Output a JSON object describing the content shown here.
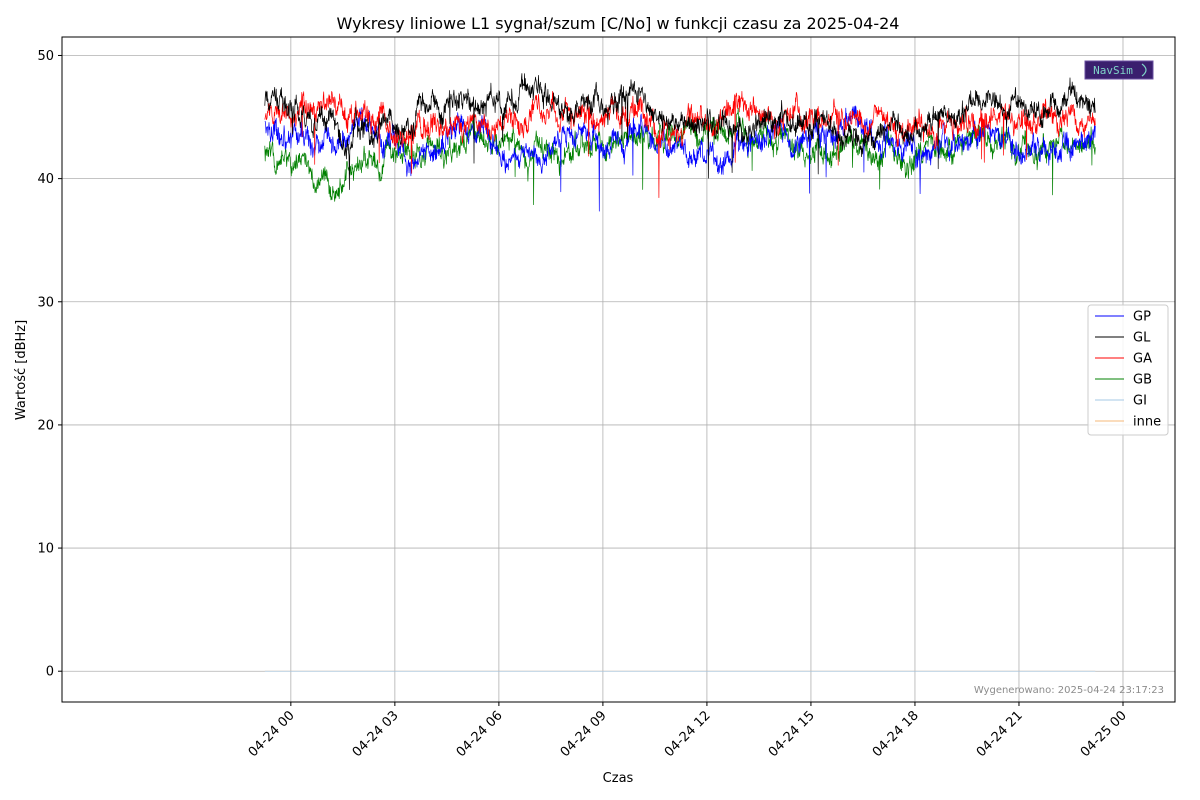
{
  "chart_data": {
    "type": "line",
    "title": "Wykresy liniowe L1 sygnał/szum [C/No] w funkcji czasu za 2025-04-24",
    "xlabel": "Czas",
    "ylabel": "Wartość [dBHz]",
    "ylim": [
      -2.5,
      51.5
    ],
    "yticks": [
      0,
      10,
      20,
      30,
      40,
      50
    ],
    "xlim_hours": [
      -6.6,
      25.5
    ],
    "xticks": [
      {
        "hour": 0,
        "label": "04-24 00"
      },
      {
        "hour": 3,
        "label": "04-24 03"
      },
      {
        "hour": 6,
        "label": "04-24 06"
      },
      {
        "hour": 9,
        "label": "04-24 09"
      },
      {
        "hour": 12,
        "label": "04-24 12"
      },
      {
        "hour": 15,
        "label": "04-24 15"
      },
      {
        "hour": 18,
        "label": "04-24 18"
      },
      {
        "hour": 21,
        "label": "04-24 21"
      },
      {
        "hour": 24,
        "label": "04-25 00"
      }
    ],
    "grid": true,
    "legend_position": "center-right",
    "series": [
      {
        "name": "GP",
        "color": "#0000ff",
        "x": [
          -0.75,
          0,
          1,
          2,
          3,
          4,
          5,
          6,
          7,
          8,
          9,
          10,
          11,
          12,
          13,
          14,
          15,
          16,
          17,
          18,
          19,
          20,
          21,
          22,
          23,
          23.2
        ],
        "y": [
          44,
          43.5,
          42.5,
          44.5,
          42.5,
          42,
          44.5,
          42.5,
          41.5,
          44,
          42.5,
          44,
          43,
          41.5,
          42.5,
          43.5,
          42.5,
          44.5,
          44,
          42.5,
          42.5,
          43.5,
          42.5,
          42,
          43,
          43.5
        ]
      },
      {
        "name": "GL",
        "color": "#000000",
        "x": [
          -0.75,
          0,
          1,
          2,
          3,
          4,
          5,
          6,
          7,
          8,
          9,
          10,
          11,
          12,
          13,
          14,
          15,
          16,
          17,
          18,
          19,
          20,
          21,
          22,
          23,
          23.2
        ],
        "y": [
          46,
          46.5,
          43.5,
          44,
          43.5,
          45.5,
          47,
          46,
          47.5,
          46,
          46.5,
          46.5,
          44.5,
          44.5,
          44,
          44.5,
          44.5,
          43.5,
          43.5,
          44,
          45.5,
          45.5,
          46,
          45.5,
          46,
          45.5
        ]
      },
      {
        "name": "GA",
        "color": "#ff0000",
        "x": [
          -0.75,
          0,
          1,
          2,
          3,
          4,
          5,
          6,
          7,
          8,
          9,
          10,
          11,
          12,
          13,
          14,
          15,
          16,
          17,
          18,
          19,
          20,
          21,
          22,
          23,
          23.2
        ],
        "y": [
          44.5,
          46,
          46.5,
          45,
          44,
          44,
          44.5,
          44.5,
          45.5,
          45,
          45,
          44.5,
          44,
          44,
          45.5,
          45,
          44.5,
          44.5,
          44.5,
          44.5,
          44,
          45,
          45,
          45,
          45,
          45
        ]
      },
      {
        "name": "GB",
        "color": "#008000",
        "x": [
          -0.75,
          0,
          1,
          2,
          3,
          4,
          5,
          6,
          7,
          8,
          9,
          10,
          11,
          12,
          13,
          14,
          15,
          16,
          17,
          18,
          19,
          20,
          21,
          22,
          23,
          23.2
        ],
        "y": [
          42,
          41,
          40.5,
          40.5,
          43,
          42.5,
          42.5,
          43,
          42,
          42,
          42.5,
          42.5,
          43,
          43.5,
          44,
          43,
          42.5,
          42.5,
          42,
          42,
          42.5,
          42.5,
          42.5,
          42.5,
          43,
          43
        ]
      },
      {
        "name": "GI",
        "color": "#a6c8e6",
        "x": [
          -0.75,
          23.2
        ],
        "y": [
          0,
          0
        ]
      },
      {
        "name": "inne",
        "color": "#f5b87a",
        "x": [
          -0.75,
          23.2
        ],
        "y": [
          0,
          0
        ]
      }
    ]
  },
  "logo": {
    "text": "NavSim"
  },
  "footer": {
    "generated": "Wygenerowano: 2025-04-24 23:17:23"
  }
}
